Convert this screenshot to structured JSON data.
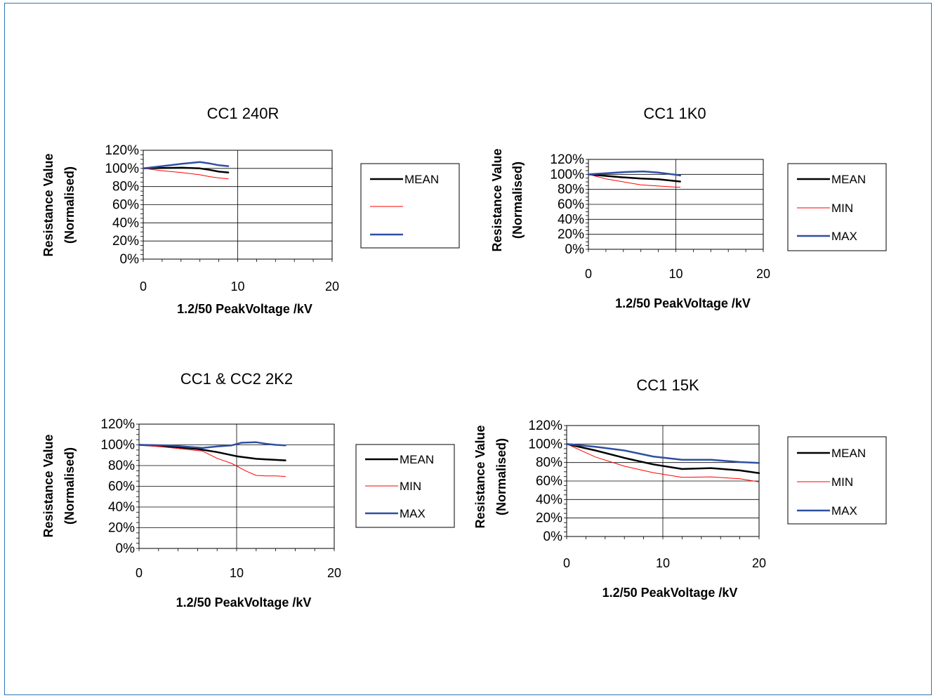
{
  "chart_data": [
    {
      "type": "line",
      "title": "CC1 240R",
      "xlabel": "1.2/50 PeakVoltage /kV",
      "ylabel": [
        "Resistance Value",
        "(Normalised)"
      ],
      "xlim": [
        0,
        20
      ],
      "ylim": [
        0,
        1.2
      ],
      "xticks": [
        "0",
        "10",
        "20"
      ],
      "yticks": [
        "0%",
        "20%",
        "40%",
        "60%",
        "80%",
        "100%",
        "120%"
      ],
      "grid": "horizontal + x=10",
      "legend": "right",
      "series": [
        {
          "name": "MEAN",
          "color": "#000000",
          "width": 2.5,
          "x": [
            0,
            2,
            4,
            6,
            7,
            8,
            9
          ],
          "y": [
            1.0,
            1.005,
            1.008,
            1.0,
            0.985,
            0.965,
            0.955
          ]
        },
        {
          "name": "",
          "color": "#ff0000",
          "width": 1,
          "x": [
            0,
            2,
            4,
            6,
            7,
            8,
            9
          ],
          "y": [
            1.0,
            0.975,
            0.955,
            0.93,
            0.91,
            0.895,
            0.885
          ]
        },
        {
          "name": "",
          "color": "#2f4fa2",
          "width": 2.5,
          "x": [
            0,
            2,
            4,
            6,
            7,
            8,
            9
          ],
          "y": [
            1.0,
            1.025,
            1.05,
            1.07,
            1.055,
            1.035,
            1.025
          ]
        }
      ]
    },
    {
      "type": "line",
      "title": "CC1 1K0",
      "xlabel": "1.2/50 PeakVoltage /kV",
      "ylabel": [
        "Resistance Value",
        "(Normalised)"
      ],
      "xlim": [
        0,
        20
      ],
      "ylim": [
        0,
        1.2
      ],
      "xticks": [
        "0",
        "10",
        "20"
      ],
      "yticks": [
        "0%",
        "20%",
        "40%",
        "60%",
        "80%",
        "100%",
        "120%"
      ],
      "grid": "horizontal + x=10",
      "legend": "right",
      "series": [
        {
          "name": "MEAN",
          "color": "#000000",
          "width": 2.5,
          "x": [
            0,
            2,
            4,
            6,
            8,
            10,
            10.5
          ],
          "y": [
            1.0,
            0.98,
            0.96,
            0.945,
            0.935,
            0.91,
            0.905
          ]
        },
        {
          "name": "MIN",
          "color": "#ff0000",
          "width": 1,
          "x": [
            0,
            2,
            4,
            6,
            8,
            10,
            10.5
          ],
          "y": [
            1.0,
            0.94,
            0.9,
            0.86,
            0.845,
            0.83,
            0.83
          ]
        },
        {
          "name": "MAX",
          "color": "#2f4fa2",
          "width": 2.5,
          "x": [
            0,
            2,
            4,
            6.3,
            8,
            10,
            10.5
          ],
          "y": [
            1.0,
            1.015,
            1.03,
            1.04,
            1.025,
            0.995,
            0.985
          ]
        }
      ]
    },
    {
      "type": "line",
      "title": "CC1 & CC2   2K2",
      "xlabel": "1.2/50 PeakVoltage /kV",
      "ylabel": [
        "Resistance Value",
        "(Normalised)"
      ],
      "xlim": [
        0,
        20
      ],
      "ylim": [
        0,
        1.2
      ],
      "xticks": [
        "0",
        "10",
        "20"
      ],
      "yticks": [
        "0%",
        "20%",
        "40%",
        "60%",
        "80%",
        "100%",
        "120%"
      ],
      "grid": "horizontal + x=10",
      "legend": "right",
      "series": [
        {
          "name": "MEAN",
          "color": "#000000",
          "width": 2.5,
          "x": [
            0,
            3,
            6,
            8,
            10,
            12,
            14,
            15
          ],
          "y": [
            1.0,
            0.985,
            0.96,
            0.93,
            0.89,
            0.865,
            0.855,
            0.85
          ]
        },
        {
          "name": "MIN",
          "color": "#ff0000",
          "width": 1,
          "x": [
            0,
            3,
            6.5,
            8,
            9.5,
            11,
            12,
            13,
            14,
            15
          ],
          "y": [
            1.0,
            0.975,
            0.94,
            0.87,
            0.82,
            0.745,
            0.705,
            0.7,
            0.7,
            0.695
          ]
        },
        {
          "name": "MAX",
          "color": "#2f4fa2",
          "width": 2.5,
          "x": [
            0,
            3,
            6.5,
            8,
            9.5,
            10.5,
            12,
            13,
            14,
            15
          ],
          "y": [
            1.0,
            0.995,
            0.97,
            0.985,
            0.995,
            1.02,
            1.025,
            1.01,
            1.0,
            0.995
          ]
        }
      ]
    },
    {
      "type": "line",
      "title": "CC1   15K",
      "xlabel": "1.2/50 PeakVoltage /kV",
      "ylabel": [
        "Resistance Value",
        "(Normalised)"
      ],
      "xlim": [
        0,
        20
      ],
      "ylim": [
        0,
        1.2
      ],
      "xticks": [
        "0",
        "10",
        "20"
      ],
      "yticks": [
        "0%",
        "20%",
        "40%",
        "60%",
        "80%",
        "100%",
        "120%"
      ],
      "grid": "horizontal + x=10",
      "legend": "right",
      "series": [
        {
          "name": "MEAN",
          "color": "#000000",
          "width": 2.5,
          "x": [
            0,
            3,
            6,
            9,
            12,
            15,
            18,
            20
          ],
          "y": [
            1.0,
            0.93,
            0.85,
            0.78,
            0.73,
            0.74,
            0.715,
            0.685
          ]
        },
        {
          "name": "MIN",
          "color": "#ff0000",
          "width": 1,
          "x": [
            0,
            3,
            6,
            9,
            12,
            15,
            18,
            20
          ],
          "y": [
            1.0,
            0.86,
            0.76,
            0.69,
            0.64,
            0.645,
            0.625,
            0.59
          ]
        },
        {
          "name": "MAX",
          "color": "#2f4fa2",
          "width": 2.5,
          "x": [
            0,
            3,
            6,
            9,
            12,
            15,
            18,
            20
          ],
          "y": [
            1.0,
            0.97,
            0.93,
            0.865,
            0.83,
            0.83,
            0.805,
            0.795
          ]
        }
      ]
    }
  ]
}
